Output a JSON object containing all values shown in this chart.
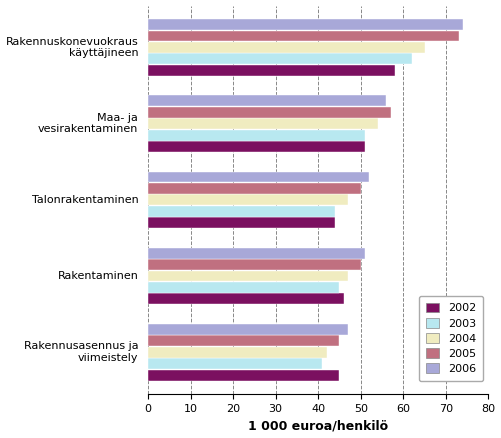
{
  "categories": [
    "Rakennuskonevuokraus\nkäyttäjineen",
    "Maa- ja\nvesirakentaminen",
    "Talonrakentaminen",
    "Rakentaminen",
    "Rakennusasennus ja\nviimeistely"
  ],
  "years": [
    "2002",
    "2003",
    "2004",
    "2005",
    "2006"
  ],
  "values": [
    [
      58,
      62,
      65,
      73,
      74
    ],
    [
      51,
      51,
      54,
      57,
      56
    ],
    [
      44,
      44,
      47,
      50,
      52
    ],
    [
      46,
      45,
      47,
      50,
      51
    ],
    [
      45,
      41,
      42,
      45,
      47
    ]
  ],
  "colors": [
    "#7b1060",
    "#b8e8f0",
    "#f0ecc0",
    "#c07080",
    "#a8a8d8"
  ],
  "xlabel": "1 000 euroa/henkilö",
  "xlim": [
    0,
    80
  ],
  "xticks": [
    0,
    10,
    20,
    30,
    40,
    50,
    60,
    70,
    80
  ],
  "background_color": "#ffffff",
  "bar_edge_color": "#ffffff"
}
